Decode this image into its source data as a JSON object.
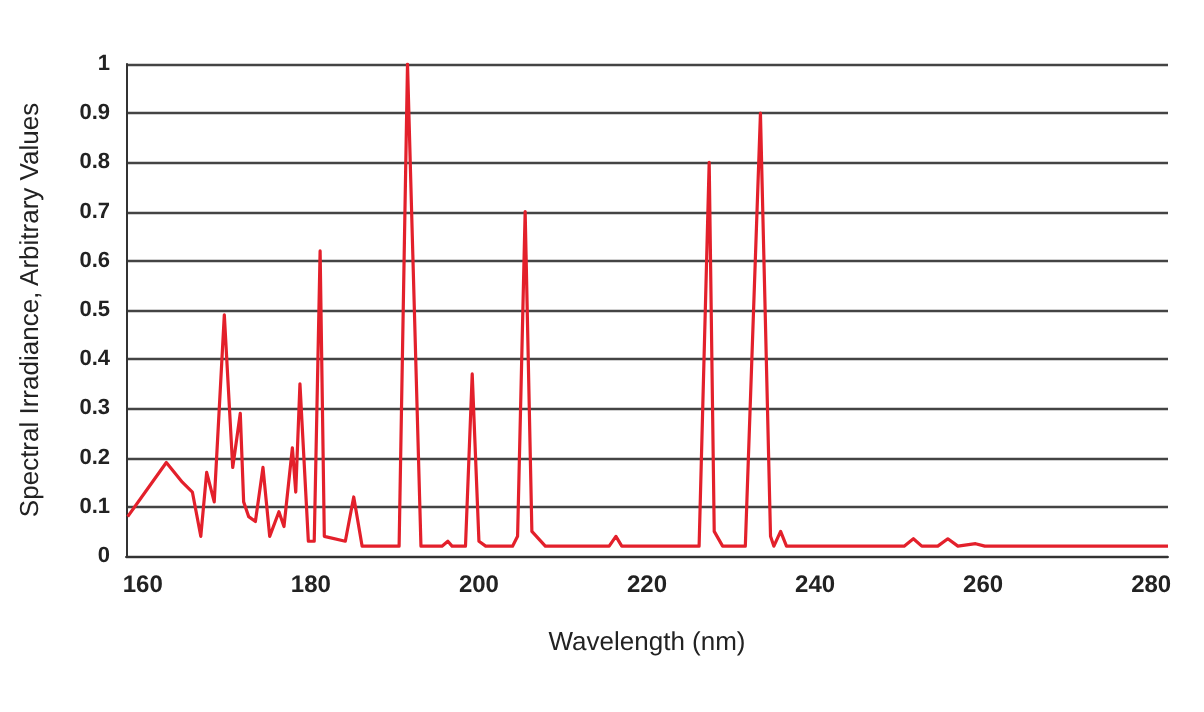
{
  "chart_data": {
    "type": "line",
    "xlabel": "Wavelength (nm)",
    "ylabel": "Spectral Irradiance, Arbitrary Values",
    "xlim": [
      158,
      282
    ],
    "xticks": [
      160,
      180,
      200,
      220,
      240,
      260,
      280
    ],
    "ylim": [
      0,
      1
    ],
    "yticks": [
      0,
      0.1,
      0.2,
      0.3,
      0.4,
      0.5,
      0.6,
      0.7,
      0.8,
      0.9,
      1
    ],
    "grid": "y",
    "marker": "none",
    "line_style": "solid",
    "series": [
      {
        "color": "#e3202b",
        "x": [
          158.2,
          162.8,
          164.7,
          165.9,
          166.9,
          167.6,
          168.5,
          169.7,
          170.7,
          171.6,
          172,
          172.6,
          173.4,
          174.3,
          175.1,
          176.2,
          176.8,
          177.8,
          178.2,
          178.7,
          179.7,
          180.4,
          181.1,
          181.6,
          184.1,
          185.1,
          186.1,
          190.5,
          191.5,
          193.1,
          195.6,
          196.3,
          196.8,
          198.4,
          199.2,
          200,
          200.8,
          204,
          204.6,
          205.5,
          206.3,
          207.9,
          215.5,
          216.3,
          217,
          226.2,
          227.4,
          228,
          229,
          231.7,
          233.5,
          234.7,
          235.1,
          235.9,
          236.6,
          250.6,
          251.7,
          252.7,
          254.6,
          255.8,
          257,
          259.1,
          260.2,
          282
        ],
        "values": [
          0.08,
          0.19,
          0.15,
          0.13,
          0.04,
          0.17,
          0.11,
          0.49,
          0.18,
          0.29,
          0.11,
          0.08,
          0.07,
          0.18,
          0.04,
          0.09,
          0.06,
          0.22,
          0.13,
          0.35,
          0.03,
          0.03,
          0.62,
          0.04,
          0.03,
          0.12,
          0.02,
          0.02,
          1.0,
          0.02,
          0.02,
          0.03,
          0.02,
          0.02,
          0.37,
          0.03,
          0.02,
          0.02,
          0.04,
          0.7,
          0.05,
          0.02,
          0.02,
          0.04,
          0.02,
          0.02,
          0.8,
          0.05,
          0.02,
          0.02,
          0.9,
          0.04,
          0.02,
          0.05,
          0.02,
          0.02,
          0.035,
          0.02,
          0.02,
          0.035,
          0.02,
          0.025,
          0.02,
          0.02
        ]
      }
    ]
  }
}
